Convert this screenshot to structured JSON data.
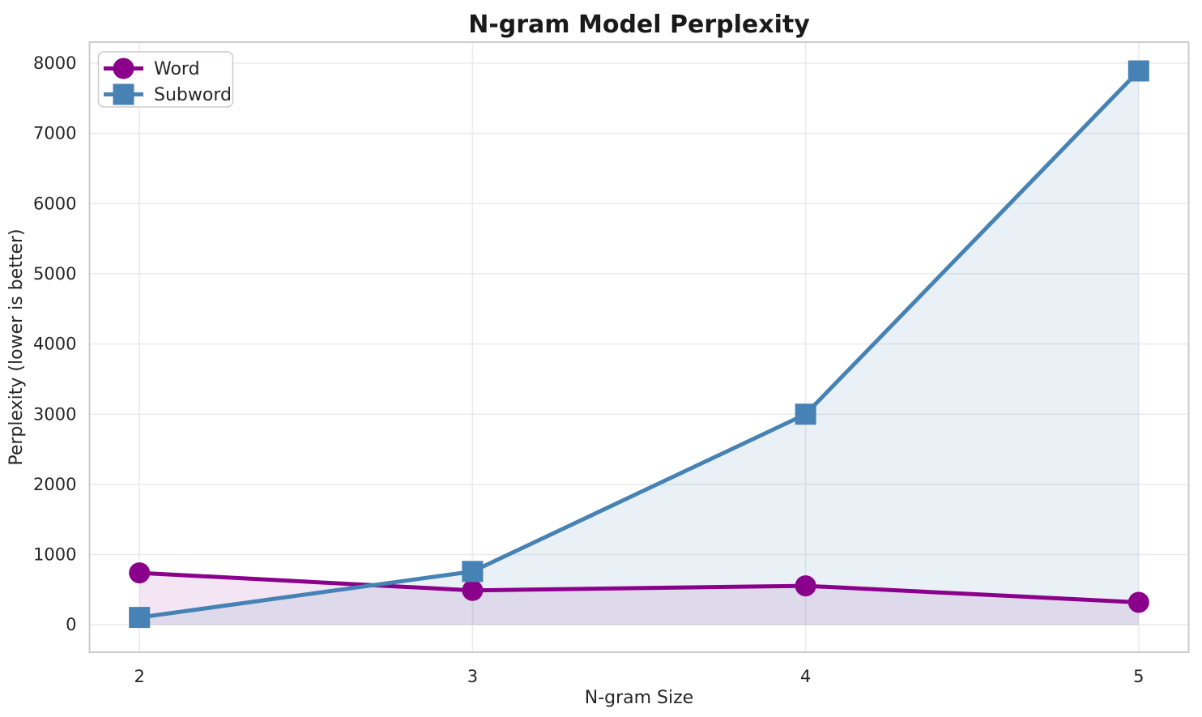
{
  "chart_data": {
    "type": "line",
    "title": "N-gram Model Perplexity",
    "xlabel": "N-gram Size",
    "ylabel": "Perplexity (lower is better)",
    "x": [
      2,
      3,
      4,
      5
    ],
    "series": [
      {
        "name": "Word",
        "color": "#8B008B",
        "marker": "circle",
        "values": [
          740,
          490,
          555,
          320
        ],
        "fill_opacity": 0.1
      },
      {
        "name": "Subword",
        "color": "#4682B4",
        "marker": "square",
        "values": [
          105,
          760,
          3000,
          7890
        ],
        "fill_opacity": 0.12
      }
    ],
    "area_fill_baseline": 0,
    "xticks": [
      2,
      3,
      4,
      5
    ],
    "yticks": [
      0,
      1000,
      2000,
      3000,
      4000,
      5000,
      6000,
      7000,
      8000
    ],
    "xlim": [
      1.85,
      5.15
    ],
    "ylim": [
      -390,
      8300
    ],
    "grid": true,
    "legend_position": "upper left",
    "colors": {
      "grid": "#EBEBEB",
      "spine": "#CCCCCC",
      "text": "#262626",
      "background": "#FFFFFF"
    },
    "line_width": 5,
    "marker_size": 26
  }
}
